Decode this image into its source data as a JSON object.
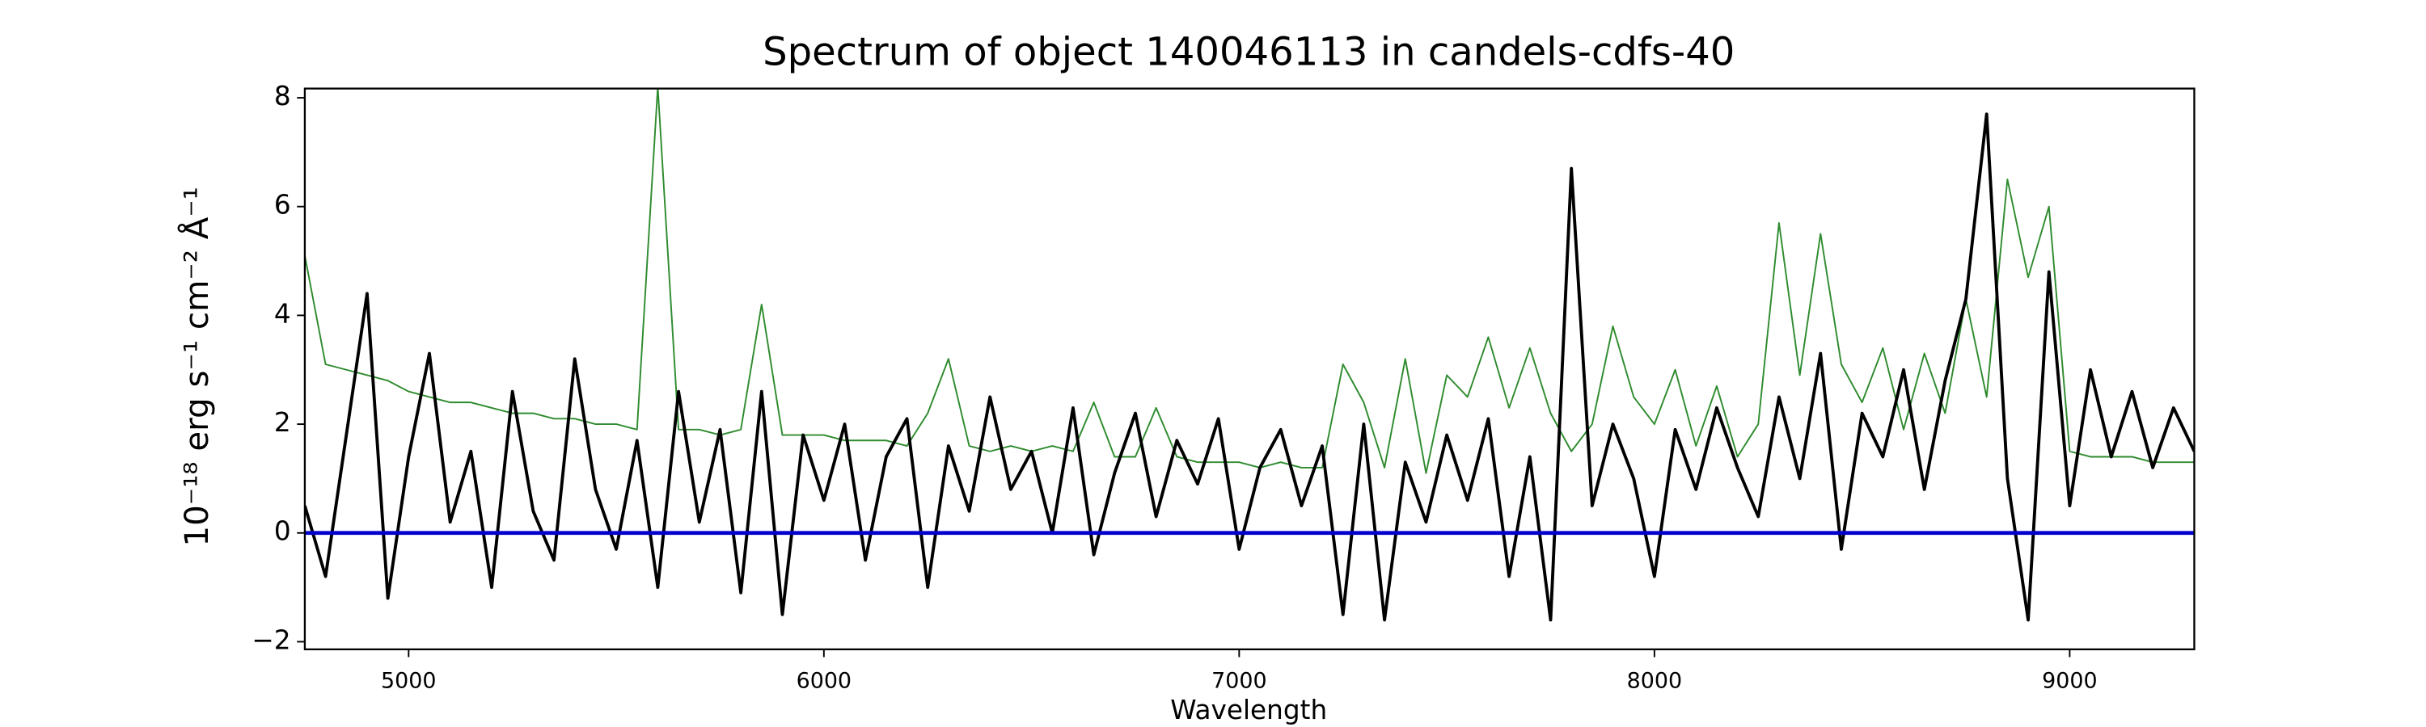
{
  "chart_data": {
    "type": "line",
    "title": "Spectrum of object 140046113 in candels-cdfs-40",
    "x_label": "Wavelength",
    "y_label": "10⁻¹⁸ erg s⁻¹ cm⁻² Å⁻¹",
    "x": [
      4750,
      4800,
      4850,
      4900,
      4950,
      5000,
      5050,
      5100,
      5150,
      5200,
      5250,
      5300,
      5350,
      5400,
      5450,
      5500,
      5550,
      5600,
      5650,
      5700,
      5750,
      5800,
      5850,
      5900,
      5950,
      6000,
      6050,
      6100,
      6150,
      6200,
      6250,
      6300,
      6350,
      6400,
      6450,
      6500,
      6550,
      6600,
      6650,
      6700,
      6750,
      6800,
      6850,
      6900,
      6950,
      7000,
      7050,
      7100,
      7150,
      7200,
      7250,
      7300,
      7350,
      7400,
      7450,
      7500,
      7550,
      7600,
      7650,
      7700,
      7750,
      7800,
      7850,
      7900,
      7950,
      8000,
      8050,
      8100,
      8150,
      8200,
      8250,
      8300,
      8350,
      8400,
      8450,
      8500,
      8550,
      8600,
      8650,
      8700,
      8750,
      8800,
      8850,
      8900,
      8950,
      9000,
      9050,
      9100,
      9150,
      9200,
      9250,
      9300
    ],
    "series": [
      {
        "color": "#2e8b2e",
        "width": 1,
        "values": [
          5.1,
          3.1,
          3.0,
          2.9,
          2.8,
          2.6,
          2.5,
          2.4,
          2.4,
          2.3,
          2.2,
          2.2,
          2.1,
          2.1,
          2.0,
          2.0,
          1.9,
          8.2,
          1.9,
          1.9,
          1.8,
          1.9,
          4.2,
          1.8,
          1.8,
          1.8,
          1.7,
          1.7,
          1.7,
          1.6,
          2.2,
          3.2,
          1.6,
          1.5,
          1.6,
          1.5,
          1.6,
          1.5,
          2.4,
          1.4,
          1.4,
          2.3,
          1.4,
          1.3,
          1.3,
          1.3,
          1.2,
          1.3,
          1.2,
          1.2,
          3.1,
          2.4,
          1.2,
          3.2,
          1.1,
          2.9,
          2.5,
          3.6,
          2.3,
          3.4,
          2.2,
          1.5,
          2.0,
          3.8,
          2.5,
          2.0,
          3.0,
          1.6,
          2.7,
          1.4,
          2.0,
          5.7,
          2.9,
          5.5,
          3.1,
          2.4,
          3.4,
          1.9,
          3.3,
          2.2,
          4.3,
          2.5,
          6.5,
          4.7,
          6.0,
          1.5,
          1.4,
          1.4,
          1.4,
          1.3,
          1.3,
          1.3
        ]
      },
      {
        "color": "#000000",
        "width": 2,
        "values": [
          0.5,
          -0.8,
          1.8,
          4.4,
          -1.2,
          1.4,
          3.3,
          0.2,
          1.5,
          -1.0,
          2.6,
          0.4,
          -0.5,
          3.2,
          0.8,
          -0.3,
          1.7,
          -1.0,
          2.6,
          0.2,
          1.9,
          -1.1,
          2.6,
          -1.5,
          1.8,
          0.6,
          2.0,
          -0.5,
          1.4,
          2.1,
          -1.0,
          1.6,
          0.4,
          2.5,
          0.8,
          1.5,
          0.0,
          2.3,
          -0.4,
          1.1,
          2.2,
          0.3,
          1.7,
          0.9,
          2.1,
          -0.3,
          1.2,
          1.9,
          0.5,
          1.6,
          -1.5,
          2.0,
          -1.6,
          1.3,
          0.2,
          1.8,
          0.6,
          2.1,
          -0.8,
          1.4,
          -1.6,
          6.7,
          0.5,
          2.0,
          1.0,
          -0.8,
          1.9,
          0.8,
          2.3,
          1.2,
          0.3,
          2.5,
          1.0,
          3.3,
          -0.3,
          2.2,
          1.4,
          3.0,
          0.8,
          2.8,
          4.3,
          7.7,
          1.0,
          -1.6,
          4.8,
          0.5,
          3.0,
          1.4,
          2.6,
          1.2,
          2.3,
          1.5
        ]
      }
    ],
    "hlines": [
      {
        "y": 0,
        "color": "#0000cc"
      }
    ],
    "xlim": [
      4750,
      9300
    ],
    "ylim": [
      -2.14,
      8.17
    ],
    "xticks": [
      5000,
      6000,
      7000,
      8000,
      9000
    ],
    "yticks": [
      {
        "value": -2,
        "label": "−2"
      },
      0,
      2,
      4,
      6,
      8
    ]
  }
}
